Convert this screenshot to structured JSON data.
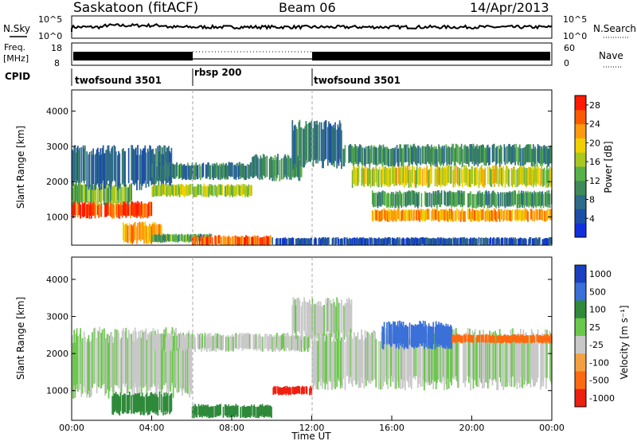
{
  "header": {
    "station": "Saskatoon (fitACF)",
    "beam": "Beam 06",
    "date": "14/Apr/2013"
  },
  "noise_panel": {
    "left_label": "N.Sky",
    "right_label": "N.Search",
    "left_ticks": [
      "10^5",
      "10^0"
    ],
    "right_ticks": [
      "10^5",
      "10^0"
    ]
  },
  "freq_panel": {
    "left_label_1": "Freq.",
    "left_label_2": "[MHz]",
    "left_ticks": [
      "18",
      "8"
    ],
    "right_label": "Nave",
    "right_ticks": [
      "60",
      "0"
    ]
  },
  "cpid": {
    "label": "CPID",
    "segments": [
      {
        "name": "twofsound 3501",
        "start_hour": 0,
        "end_hour": 6
      },
      {
        "name": "rbsp 200",
        "start_hour": 6,
        "end_hour": 12
      },
      {
        "name": "twofsound 3501",
        "start_hour": 12,
        "end_hour": 24
      }
    ]
  },
  "chart_data": [
    {
      "type": "heatmap",
      "id": "power",
      "ylabel": "Slant Range [km]",
      "xlabel": "",
      "xlim": [
        0,
        24
      ],
      "ylim": [
        200,
        4600
      ],
      "yticks": [
        "1000",
        "2000",
        "3000",
        "4000"
      ],
      "colorbar": {
        "label": "Power [dB]",
        "ticks": [
          "28",
          "24",
          "20",
          "16",
          "12",
          "8",
          "4"
        ],
        "range": [
          0,
          30
        ],
        "colors": [
          "#1030e0",
          "#1c4fa8",
          "#2f6b8a",
          "#3f8a5a",
          "#58b048",
          "#a8c820",
          "#f0d000",
          "#ff9a10",
          "#ff5a00",
          "#ff1a00"
        ]
      },
      "bands": [
        {
          "t0": 0.0,
          "t1": 4.0,
          "r0": 1000,
          "r1": 1400,
          "power": 27
        },
        {
          "t0": 0.0,
          "t1": 3.0,
          "r0": 1400,
          "r1": 1900,
          "power": 14
        },
        {
          "t0": 0.0,
          "t1": 5.0,
          "r0": 1900,
          "r1": 2900,
          "power": 7
        },
        {
          "t0": 2.5,
          "t1": 4.5,
          "r0": 300,
          "r1": 800,
          "power": 22
        },
        {
          "t0": 4.0,
          "t1": 7.0,
          "r0": 300,
          "r1": 500,
          "power": 12
        },
        {
          "t0": 6.0,
          "t1": 10.0,
          "r0": 200,
          "r1": 450,
          "power": 25
        },
        {
          "t0": 4.0,
          "t1": 9.0,
          "r0": 1600,
          "r1": 1900,
          "power": 16
        },
        {
          "t0": 4.0,
          "t1": 9.0,
          "r0": 2100,
          "r1": 2500,
          "power": 9
        },
        {
          "t0": 9.0,
          "t1": 11.5,
          "r0": 2100,
          "r1": 2700,
          "power": 10
        },
        {
          "t0": 11.0,
          "t1": 13.5,
          "r0": 2500,
          "r1": 3600,
          "power": 8
        },
        {
          "t0": 14.0,
          "t1": 24.0,
          "r0": 1900,
          "r1": 2400,
          "power": 18
        },
        {
          "t0": 13.5,
          "t1": 24.0,
          "r0": 2500,
          "r1": 3000,
          "power": 10
        },
        {
          "t0": 15.0,
          "t1": 24.0,
          "r0": 1300,
          "r1": 1700,
          "power": 11
        },
        {
          "t0": 15.0,
          "t1": 24.0,
          "r0": 900,
          "r1": 1200,
          "power": 22
        },
        {
          "t0": 10.0,
          "t1": 24.0,
          "r0": 200,
          "r1": 400,
          "power": 5
        }
      ]
    },
    {
      "type": "heatmap",
      "id": "velocity",
      "ylabel": "Slant Range [km]",
      "xlabel": "Time UT",
      "xlim": [
        0,
        24
      ],
      "ylim": [
        200,
        4600
      ],
      "yticks": [
        "1000",
        "2000",
        "3000",
        "4000"
      ],
      "xticks": [
        "00:00",
        "04:00",
        "08:00",
        "12:00",
        "16:00",
        "20:00",
        "00:00"
      ],
      "colorbar": {
        "label": "Velocity [m s⁻¹]",
        "ticks": [
          "1000",
          "500",
          "100",
          "25",
          "-25",
          "-100",
          "-500",
          "-1000"
        ],
        "colors": [
          "#1a40c0",
          "#3a70d8",
          "#2f8a3a",
          "#6ac84a",
          "#c8c8c8",
          "#f5a040",
          "#ff6a10",
          "#ee2010"
        ]
      },
      "bands": [
        {
          "t0": 0.0,
          "t1": 6.0,
          "r0": 1000,
          "r1": 2500,
          "velocity": 20
        },
        {
          "t0": 2.0,
          "t1": 5.0,
          "r0": 400,
          "r1": 900,
          "velocity": 200
        },
        {
          "t0": 6.0,
          "t1": 10.0,
          "r0": 300,
          "r1": 600,
          "velocity": 150
        },
        {
          "t0": 4.0,
          "t1": 12.0,
          "r0": 2100,
          "r1": 2500,
          "velocity": 10
        },
        {
          "t0": 11.0,
          "t1": 14.0,
          "r0": 2500,
          "r1": 3400,
          "velocity": 5
        },
        {
          "t0": 12.0,
          "t1": 24.0,
          "r0": 1200,
          "r1": 2500,
          "velocity": 15
        },
        {
          "t0": 15.5,
          "t1": 19.0,
          "r0": 2200,
          "r1": 2800,
          "velocity": 600
        },
        {
          "t0": 19.0,
          "t1": 24.0,
          "r0": 2300,
          "r1": 2500,
          "velocity": -300
        },
        {
          "t0": 10.0,
          "t1": 12.0,
          "r0": 900,
          "r1": 1100,
          "velocity": -800
        }
      ]
    }
  ]
}
